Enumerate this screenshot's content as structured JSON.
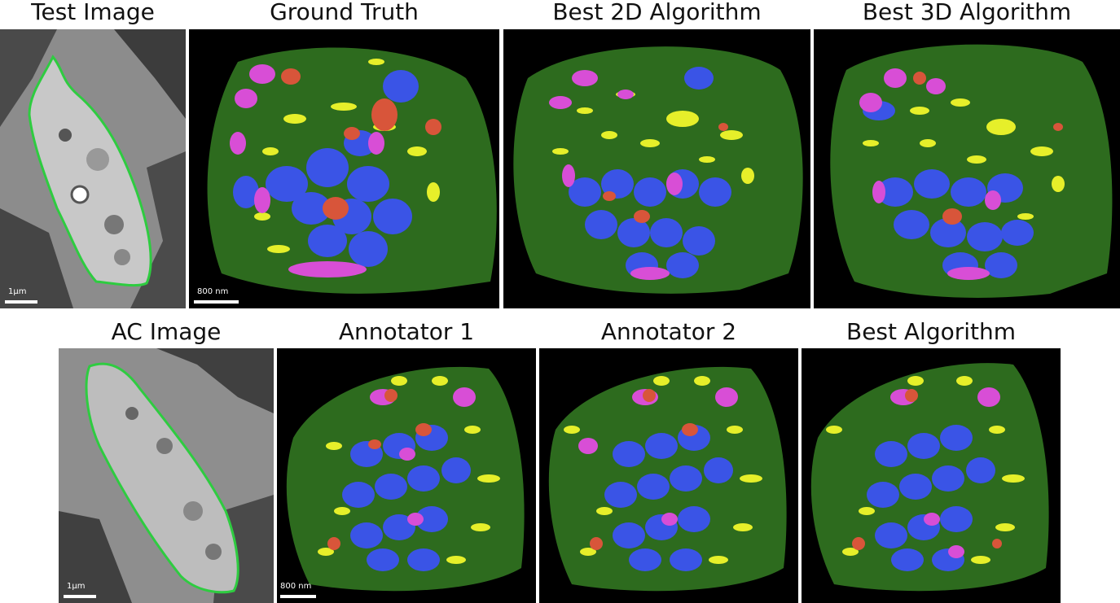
{
  "row1": {
    "titles": [
      "Test Image",
      "Ground Truth",
      "Best 2D Algorithm",
      "Best 3D Algorithm"
    ],
    "scalebars": {
      "em": "1µm",
      "render": "800 nm"
    }
  },
  "row2": {
    "titles": [
      "AC Image",
      "Annotator 1",
      "Annotator 2",
      "Best Algorithm"
    ],
    "scalebars": {
      "em": "1µm",
      "render": "800 nm"
    }
  },
  "colors": {
    "outline": "#2ecc40",
    "cell": "#2d6b1e",
    "blue": "#3a54e6",
    "yellow": "#e6ef2a",
    "magenta": "#d84ed6",
    "red": "#d8553a"
  }
}
